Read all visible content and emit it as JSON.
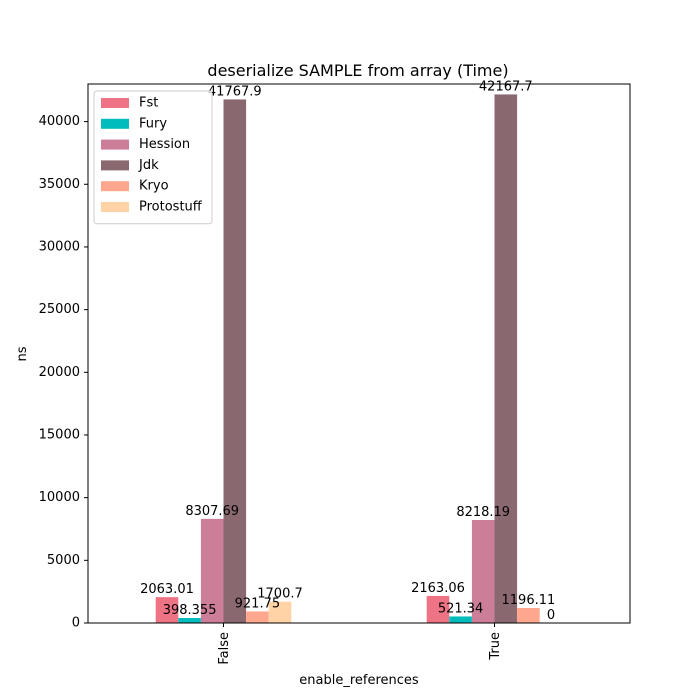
{
  "chart_data": {
    "type": "bar",
    "title": "deserialize SAMPLE from array (Time)",
    "xlabel": "enable_references",
    "ylabel": "ns",
    "categories": [
      "False",
      "True"
    ],
    "ylim": [
      0,
      43000
    ],
    "yticks": [
      0,
      5000,
      10000,
      15000,
      20000,
      25000,
      30000,
      35000,
      40000
    ],
    "grid": false,
    "legend_position": "top-left",
    "series": [
      {
        "name": "Fst",
        "color": "#ee7384",
        "values": [
          2063.01,
          2163.06
        ],
        "labels": [
          "2063.01",
          "2163.06"
        ]
      },
      {
        "name": "Fury",
        "color": "#00bdbb",
        "values": [
          398.355,
          521.34
        ],
        "labels": [
          "398.355",
          "521.34"
        ]
      },
      {
        "name": "Hession",
        "color": "#cc7e99",
        "values": [
          8307.69,
          8218.19
        ],
        "labels": [
          "8307.69",
          "8218.19"
        ]
      },
      {
        "name": "Jdk",
        "color": "#8a6870",
        "values": [
          41767.9,
          42167.7
        ],
        "labels": [
          "41767.9",
          "42167.7"
        ]
      },
      {
        "name": "Kryo",
        "color": "#ffa78e",
        "values": [
          921.75,
          1196.11
        ],
        "labels": [
          "921.75",
          "1196.11"
        ]
      },
      {
        "name": "Protostuff",
        "color": "#ffd3a5",
        "values": [
          1700.7,
          0
        ],
        "labels": [
          "1700.7",
          "0"
        ]
      }
    ]
  }
}
